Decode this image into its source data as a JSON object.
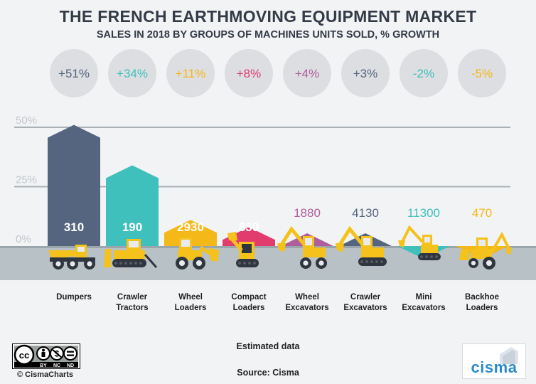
{
  "header": {
    "title": "THE FRENCH EARTHMOVING EQUIPMENT MARKET",
    "subtitle": "SALES IN 2018 BY GROUPS OF MACHINES UNITS SOLD, % GROWTH"
  },
  "chart_data": {
    "type": "bar",
    "yticks": [
      "50%",
      "25%",
      "0%"
    ],
    "ytick_values": [
      50,
      25,
      0
    ],
    "ylim": [
      -12,
      57
    ],
    "grid": true,
    "categories": [
      "Dumpers",
      "Crawler Tractors",
      "Wheel Loaders",
      "Compact Loaders",
      "Wheel Excavators",
      "Crawler Excavators",
      "Mini Excavators",
      "Backhoe Loaders"
    ],
    "category_lines": [
      [
        "Dumpers"
      ],
      [
        "Crawler",
        "Tractors"
      ],
      [
        "Wheel",
        "Loaders"
      ],
      [
        "Compact",
        "Loaders"
      ],
      [
        "Wheel",
        "Excavators"
      ],
      [
        "Crawler",
        "Excavators"
      ],
      [
        "Mini",
        "Excavators"
      ],
      [
        "Backhoe",
        "Loaders"
      ]
    ],
    "growth_values": [
      51,
      34,
      11,
      8,
      4,
      3,
      -2,
      -5
    ],
    "growth_labels": [
      "+51%",
      "+34%",
      "+11%",
      "+8%",
      "+4%",
      "+3%",
      "-2%",
      "-5%"
    ],
    "units_sold": [
      "310",
      "190",
      "2930",
      "830",
      "1880",
      "4130",
      "11300",
      "470"
    ],
    "colors": [
      "#56657f",
      "#3fc0bd",
      "#f4b818",
      "#e23c6f",
      "#b05d9e",
      "#56657f",
      "#3fc0bd",
      "#f4b818"
    ]
  },
  "icons": [
    "dumper-icon",
    "crawler-tractor-icon",
    "wheel-loader-icon",
    "compact-loader-icon",
    "wheel-excavator-icon",
    "crawler-excavator-icon",
    "mini-excavator-icon",
    "backhoe-loader-icon"
  ],
  "footer": {
    "note": "Estimated data",
    "source": "Source: Cisma",
    "copyright": "© CismaCharts",
    "license": [
      "BY",
      "NC",
      "ND"
    ],
    "logo": "cisma"
  }
}
